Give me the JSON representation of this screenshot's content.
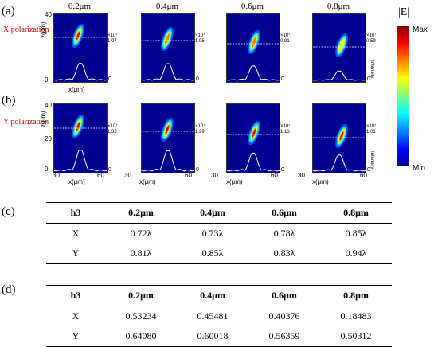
{
  "figure": {
    "panel_a": "(a)",
    "panel_b": "(b)",
    "panel_c": "(c)",
    "panel_d": "(d)",
    "x_pol": "X polarization",
    "y_pol": "Y polarization",
    "columns": [
      "0.2μm",
      "0.4μm",
      "0.6μm",
      "0.8μm"
    ],
    "z_label": "z(μm)",
    "x_label": "x(μm)",
    "z_ticks": [
      "40",
      "20",
      "0"
    ],
    "x_ticks": [
      "30",
      "60"
    ],
    "intensity_label": "Intensity",
    "intensity_zero": "0",
    "multiplier": "×10⁷",
    "x_pol_peaks": [
      "1.07",
      "1.05",
      "0.91",
      "0.59"
    ],
    "y_pol_peaks": [
      "1.32",
      "1.29",
      "1.13",
      "1.01"
    ],
    "colorbar": {
      "title": "|E|",
      "max": "Max",
      "min": "Min"
    }
  },
  "table_c": {
    "header": [
      "h3",
      "0.2μm",
      "0.4μm",
      "0.6μm",
      "0.8μm"
    ],
    "rows": [
      [
        "X",
        "0.72λ",
        "0.73λ",
        "0.78λ",
        "0.85λ"
      ],
      [
        "Y",
        "0.81λ",
        "0.85λ",
        "0.83λ",
        "0.94λ"
      ]
    ]
  },
  "table_d": {
    "header": [
      "h3",
      "0.2μm",
      "0.4μm",
      "0.6μm",
      "0.8μm"
    ],
    "rows": [
      [
        "X",
        "0.53234",
        "0.45481",
        "0.40376",
        "0.18483"
      ],
      [
        "Y",
        "0.64080",
        "0.60018",
        "0.56359",
        "0.50312"
      ]
    ]
  }
}
